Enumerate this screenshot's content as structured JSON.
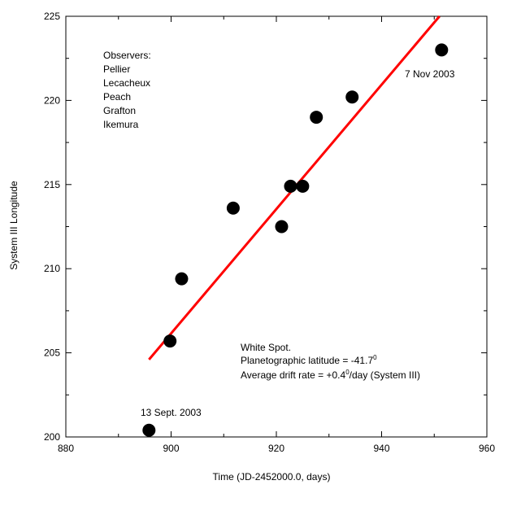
{
  "chart_data": {
    "type": "scatter",
    "xlabel": "Time (JD-2452000.0, days)",
    "ylabel": "System III Longitude",
    "xlim": [
      880,
      960
    ],
    "ylim": [
      200,
      225
    ],
    "x_ticks": [
      880,
      900,
      920,
      940,
      960
    ],
    "y_ticks": [
      200,
      205,
      210,
      215,
      220,
      225
    ],
    "x_tick_labels": [
      "880",
      "900",
      "920",
      "940",
      "960"
    ],
    "y_tick_labels": [
      "200",
      "205",
      "210",
      "215",
      "220",
      "225"
    ],
    "grid": false,
    "points": [
      {
        "x": 895.8,
        "y": 200.4
      },
      {
        "x": 899.8,
        "y": 205.7
      },
      {
        "x": 902.0,
        "y": 209.4
      },
      {
        "x": 911.8,
        "y": 213.6
      },
      {
        "x": 921.0,
        "y": 212.5
      },
      {
        "x": 922.7,
        "y": 214.9
      },
      {
        "x": 925.0,
        "y": 214.9
      },
      {
        "x": 927.6,
        "y": 219.0
      },
      {
        "x": 934.4,
        "y": 220.2
      },
      {
        "x": 951.4,
        "y": 223.0
      }
    ],
    "fit_line": {
      "x": [
        895.8,
        951.0
      ],
      "y": [
        204.6,
        225.0
      ],
      "color": "#ff0000"
    },
    "point_color": "#000000",
    "annotations": {
      "observers_title": "Observers:",
      "observers": [
        "Pellier",
        "Lecacheux",
        "Peach",
        "Grafton",
        "Ikemura"
      ],
      "start_label": "13 Sept. 2003",
      "end_label": "7 Nov 2003",
      "info_title": "White Spot.",
      "info_latitude_prefix": "Planetographic latitude = -41.7",
      "info_latitude_sup": "0",
      "info_drift_prefix": "Average drift rate = +0.4",
      "info_drift_sup": "0",
      "info_drift_suffix": "/day (System III)"
    }
  }
}
